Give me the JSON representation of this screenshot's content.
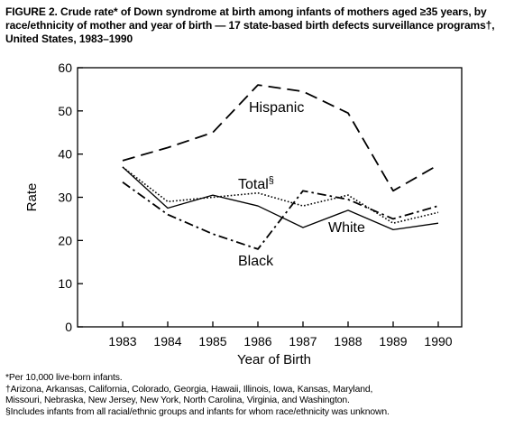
{
  "figure": {
    "title": "FIGURE 2. Crude rate* of Down syndrome at birth among infants of mothers aged ≥35 years, by race/ethnicity of mother and year of birth — 17 state-based birth defects surveillance programs†, United States, 1983–1990",
    "footnotes": [
      "*Per 10,000 live-born infants.",
      "†Arizona, Arkansas, California, Colorado, Georgia, Hawaii, Illinois, Iowa, Kansas, Maryland,",
      "Missouri, Nebraska, New Jersey, New York, North Carolina, Virginia, and Washington.",
      "§Includes infants from all racial/ethnic groups and infants for whom race/ethnicity was unknown."
    ]
  },
  "chart_data": {
    "type": "line",
    "title": "FIGURE 2. Crude rate* of Down syndrome at birth among infants of mothers aged ≥35 years, by race/ethnicity of mother and year of birth — 17 state-based birth defects surveillance programs†, United States, 1983–1990",
    "xlabel": "Year of Birth",
    "ylabel": "Rate",
    "x": [
      1983,
      1984,
      1985,
      1986,
      1987,
      1988,
      1989,
      1990
    ],
    "ylim": [
      0,
      60
    ],
    "yticks": [
      0,
      10,
      20,
      30,
      40,
      50,
      60
    ],
    "grid": false,
    "legend": "inline labels",
    "series": [
      {
        "name": "Hispanic",
        "values": [
          38.5,
          41.5,
          45,
          56,
          54.5,
          49.5,
          31.5,
          37.5
        ],
        "style": "long-dash"
      },
      {
        "name": "Total§",
        "values": [
          37,
          29,
          30,
          31,
          28,
          30.5,
          24,
          26.5
        ],
        "style": "dotted"
      },
      {
        "name": "White",
        "values": [
          37,
          27.5,
          30.5,
          28,
          23,
          27,
          22.5,
          24
        ],
        "style": "solid"
      },
      {
        "name": "Black",
        "values": [
          33.5,
          26,
          21.5,
          18,
          31.5,
          29.5,
          25,
          28
        ],
        "style": "dash-dot"
      }
    ]
  }
}
